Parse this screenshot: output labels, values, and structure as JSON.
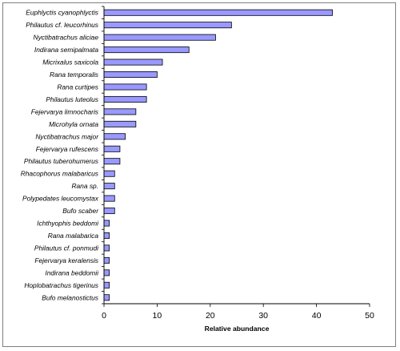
{
  "chart_data": {
    "type": "bar",
    "orientation": "horizontal",
    "categories": [
      "Euphlyctis cyanophlyctis",
      "Philautus cf. leucorhinus",
      "Nyctibatrachus aliciae",
      "Indirana semipalmata",
      "Micrixalus saxicola",
      "Rana temporalis",
      "Rana curtipes",
      "Philautus luteolus",
      "Fejervarya limnocharis",
      "Microhyla ornata",
      "Nyctibatrachus major",
      "Fejervarya rufescens",
      "Philautus tuberohumerus",
      "Rhacophorus malabaricus",
      "Rana sp.",
      "Polypedates leucomystax",
      "Bufo scaber",
      "Ichthyophis beddomi",
      "Rana malabarica",
      "Philautus cf. ponmudi",
      "Fejervarya keralensis",
      "Indirana beddomii",
      "Hoplobatrachus tigerinus",
      "Bufo melanostictus"
    ],
    "values": [
      43,
      24,
      21,
      16,
      11,
      10,
      8,
      8,
      6,
      6,
      4,
      3,
      3,
      2,
      2,
      2,
      2,
      1,
      1,
      1,
      1,
      1,
      1,
      1
    ],
    "xlabel": "Relative abundance",
    "ylabel": "",
    "title": "",
    "xlim": [
      0,
      50
    ],
    "xticks": [
      0,
      10,
      20,
      30,
      40,
      50
    ],
    "grid": false,
    "legend": "none",
    "bar_color": "#9999ff",
    "bar_edge_color": "#000000"
  }
}
